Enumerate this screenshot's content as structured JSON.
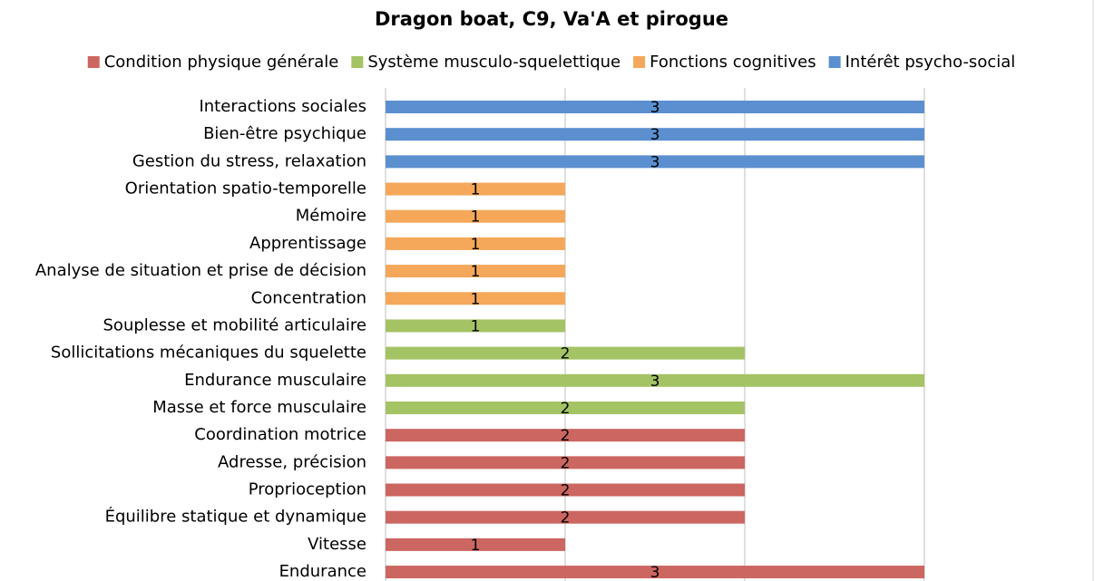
{
  "chart_data": {
    "type": "bar",
    "orientation": "horizontal",
    "title": "Dragon boat, C9, Va'A et pirogue",
    "categories": [
      "Interactions sociales",
      "Bien-être psychique",
      "Gestion du stress, relaxation",
      "Orientation spatio-temporelle",
      "Mémoire",
      "Apprentissage",
      "Analyse de situation et prise de décision",
      "Concentration",
      "Souplesse et mobilité articulaire",
      "Sollicitations mécaniques du squelette",
      "Endurance musculaire",
      "Masse et force musculaire",
      "Coordination motrice",
      "Adresse, précision",
      "Proprioception",
      "Équilibre statique et dynamique",
      "Vitesse",
      "Endurance"
    ],
    "series": [
      {
        "name": "Condition physique générale",
        "color": "#cc6661",
        "values": [
          null,
          null,
          null,
          null,
          null,
          null,
          null,
          null,
          null,
          null,
          null,
          null,
          2,
          2,
          2,
          2,
          1,
          3
        ]
      },
      {
        "name": "Système musculo-squelettique",
        "color": "#a4c364",
        "values": [
          null,
          null,
          null,
          null,
          null,
          null,
          null,
          null,
          1,
          2,
          3,
          2,
          null,
          null,
          null,
          null,
          null,
          null
        ]
      },
      {
        "name": "Fonctions cognitives",
        "color": "#f5a85a",
        "values": [
          null,
          null,
          null,
          1,
          1,
          1,
          1,
          1,
          null,
          null,
          null,
          null,
          null,
          null,
          null,
          null,
          null,
          null
        ]
      },
      {
        "name": "Intérêt psycho-social",
        "color": "#5b8fcf",
        "values": [
          3,
          3,
          3,
          null,
          null,
          null,
          null,
          null,
          null,
          null,
          null,
          null,
          null,
          null,
          null,
          null,
          null,
          null
        ]
      }
    ],
    "xlim": [
      0,
      3
    ],
    "xticks": [
      0,
      1,
      2,
      3
    ],
    "grid": true,
    "legend": "top"
  }
}
